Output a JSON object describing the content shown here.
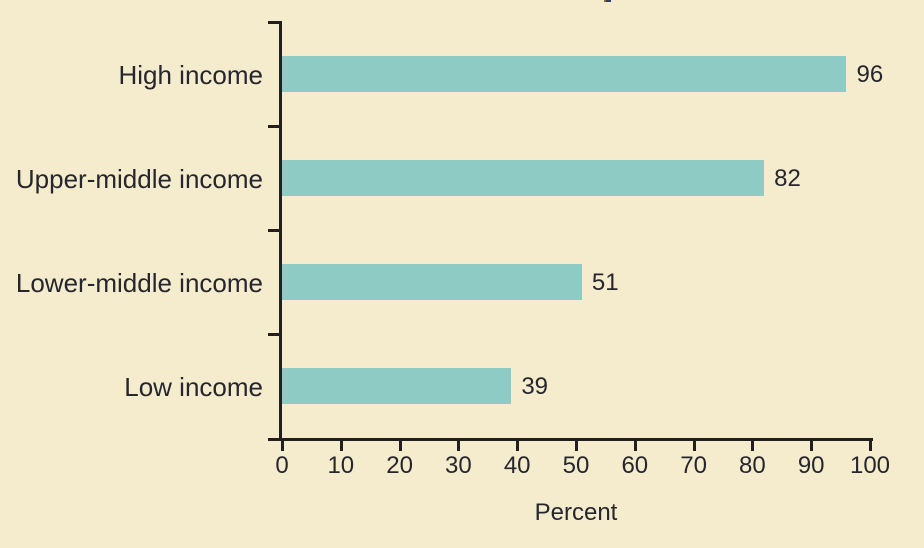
{
  "figure": {
    "background_color": "#f5eccd",
    "axis_color": "#231f20",
    "text_color": "#26262e"
  },
  "chart_data": {
    "type": "bar",
    "orientation": "horizontal",
    "categories": [
      "High income",
      "Upper-middle income",
      "Lower-middle income",
      "Low income"
    ],
    "values": [
      96,
      82,
      51,
      39
    ],
    "value_labels": [
      "96",
      "82",
      "51",
      "39"
    ],
    "xlabel": "Percent",
    "ylabel": "",
    "xlim": [
      0,
      100
    ],
    "xticks": [
      0,
      10,
      20,
      30,
      40,
      50,
      60,
      70,
      80,
      90,
      100
    ],
    "bar_color": "#8ecbc4",
    "grid": false,
    "legend": null,
    "value_labels_position": "right-of-bar",
    "category_labels_position": "left-of-axis"
  }
}
